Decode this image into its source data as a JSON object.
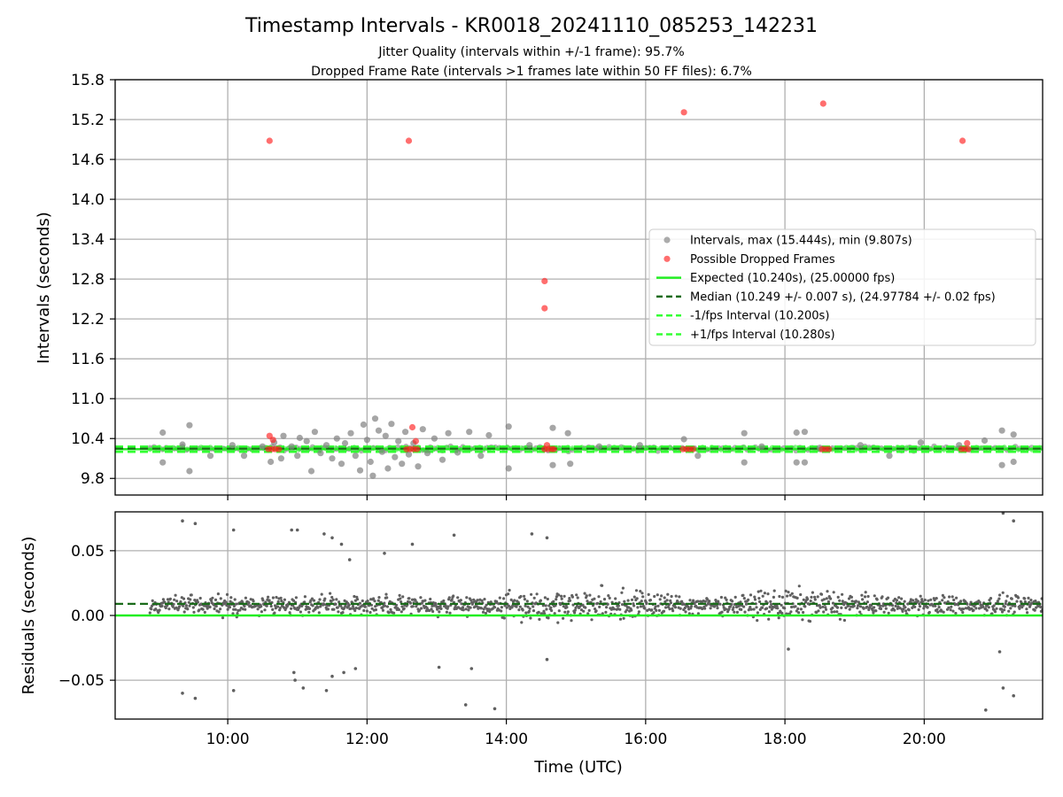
{
  "title": "Timestamp Intervals - KR0018_20241110_085253_142231",
  "subtitle_1": "Jitter Quality (intervals within +/-1 frame): 95.7%",
  "subtitle_2": "Dropped Frame Rate (intervals >1 frames late within 50 FF files): 6.7%",
  "colors": {
    "intervals": "#808080",
    "dropped": "#ff2020",
    "expected": "#22ee22",
    "median": "#1a6b1a",
    "fps_band": "#33ff33",
    "grid": "#b0b0b0",
    "residual_points": "#606060"
  },
  "chart_data": [
    {
      "type": "scatter",
      "panel": "intervals",
      "xlabel": "",
      "ylabel": "Intervals (seconds)",
      "xlim": [
        "08:23",
        "21:42"
      ],
      "ylim": [
        9.55,
        15.8
      ],
      "yticks": [
        9.8,
        10.4,
        11.0,
        11.6,
        12.2,
        12.8,
        13.4,
        14.0,
        14.6,
        15.2,
        15.8
      ],
      "ytick_labels": [
        "9.8",
        "10.4",
        "11.0",
        "11.6",
        "12.2",
        "12.8",
        "13.4",
        "14.0",
        "14.6",
        "15.2",
        "15.8"
      ],
      "xticks": [
        "10:00",
        "12:00",
        "14:00",
        "16:00",
        "18:00",
        "20:00"
      ],
      "grid": true,
      "legend_position": "center-right",
      "legend": [
        {
          "label": "Intervals, max (15.444s), min (9.807s)",
          "kind": "marker",
          "color_key": "intervals"
        },
        {
          "label": "Possible Dropped Frames",
          "kind": "marker",
          "color_key": "dropped"
        },
        {
          "label": "Expected (10.240s), (25.00000 fps)",
          "kind": "line",
          "color_key": "expected"
        },
        {
          "label": "Median (10.249 +/- 0.007 s), (24.97784 +/- 0.02 fps)",
          "kind": "dashed",
          "color_key": "median"
        },
        {
          "label": "-1/fps Interval (10.200s)",
          "kind": "dashed",
          "color_key": "fps_band"
        },
        {
          "label": "+1/fps Interval (10.280s)",
          "kind": "dashed",
          "color_key": "fps_band"
        }
      ],
      "lines": {
        "expected": 10.24,
        "median": 10.249,
        "minus_fps": 10.2,
        "plus_fps": 10.28
      },
      "dense_band": {
        "x_start": "08:53",
        "x_end": "21:42",
        "y": 10.249
      },
      "series": [
        {
          "name": "Intervals, max (15.444s), min (9.807s)",
          "points": [
            {
              "x": "09:04",
              "y": 10.49
            },
            {
              "x": "09:04",
              "y": 10.04
            },
            {
              "x": "09:21",
              "y": 10.31
            },
            {
              "x": "09:27",
              "y": 10.6
            },
            {
              "x": "09:27",
              "y": 9.91
            },
            {
              "x": "09:45",
              "y": 10.14
            },
            {
              "x": "10:04",
              "y": 10.3
            },
            {
              "x": "10:14",
              "y": 10.14
            },
            {
              "x": "10:30",
              "y": 10.28
            },
            {
              "x": "10:37",
              "y": 10.05
            },
            {
              "x": "10:40",
              "y": 10.34
            },
            {
              "x": "10:46",
              "y": 10.1
            },
            {
              "x": "10:48",
              "y": 10.44
            },
            {
              "x": "10:55",
              "y": 10.28
            },
            {
              "x": "11:00",
              "y": 10.14
            },
            {
              "x": "11:02",
              "y": 10.41
            },
            {
              "x": "11:08",
              "y": 10.36
            },
            {
              "x": "11:12",
              "y": 9.91
            },
            {
              "x": "11:15",
              "y": 10.5
            },
            {
              "x": "11:20",
              "y": 10.18
            },
            {
              "x": "11:25",
              "y": 10.3
            },
            {
              "x": "11:30",
              "y": 10.1
            },
            {
              "x": "11:34",
              "y": 10.4
            },
            {
              "x": "11:38",
              "y": 10.02
            },
            {
              "x": "11:41",
              "y": 10.33
            },
            {
              "x": "11:46",
              "y": 10.48
            },
            {
              "x": "11:50",
              "y": 10.14
            },
            {
              "x": "11:54",
              "y": 9.92
            },
            {
              "x": "11:57",
              "y": 10.61
            },
            {
              "x": "12:00",
              "y": 10.38
            },
            {
              "x": "12:03",
              "y": 10.05
            },
            {
              "x": "12:05",
              "y": 9.84
            },
            {
              "x": "12:07",
              "y": 10.7
            },
            {
              "x": "12:10",
              "y": 10.52
            },
            {
              "x": "12:13",
              "y": 10.2
            },
            {
              "x": "12:16",
              "y": 10.44
            },
            {
              "x": "12:18",
              "y": 9.95
            },
            {
              "x": "12:21",
              "y": 10.62
            },
            {
              "x": "12:24",
              "y": 10.12
            },
            {
              "x": "12:27",
              "y": 10.36
            },
            {
              "x": "12:30",
              "y": 10.02
            },
            {
              "x": "12:33",
              "y": 10.5
            },
            {
              "x": "12:36",
              "y": 10.16
            },
            {
              "x": "12:40",
              "y": 10.33
            },
            {
              "x": "12:44",
              "y": 9.98
            },
            {
              "x": "12:48",
              "y": 10.54
            },
            {
              "x": "12:52",
              "y": 10.18
            },
            {
              "x": "12:58",
              "y": 10.4
            },
            {
              "x": "13:05",
              "y": 10.08
            },
            {
              "x": "13:10",
              "y": 10.48
            },
            {
              "x": "13:18",
              "y": 10.19
            },
            {
              "x": "13:28",
              "y": 10.5
            },
            {
              "x": "13:38",
              "y": 10.14
            },
            {
              "x": "13:45",
              "y": 10.45
            },
            {
              "x": "14:02",
              "y": 10.58
            },
            {
              "x": "14:02",
              "y": 9.95
            },
            {
              "x": "14:20",
              "y": 10.3
            },
            {
              "x": "14:40",
              "y": 10.56
            },
            {
              "x": "14:40",
              "y": 10.0
            },
            {
              "x": "14:53",
              "y": 10.48
            },
            {
              "x": "14:55",
              "y": 10.02
            },
            {
              "x": "15:20",
              "y": 10.28
            },
            {
              "x": "15:55",
              "y": 10.3
            },
            {
              "x": "16:33",
              "y": 10.39
            },
            {
              "x": "16:45",
              "y": 10.14
            },
            {
              "x": "17:25",
              "y": 10.48
            },
            {
              "x": "17:25",
              "y": 10.04
            },
            {
              "x": "17:40",
              "y": 10.28
            },
            {
              "x": "18:10",
              "y": 10.49
            },
            {
              "x": "18:10",
              "y": 10.04
            },
            {
              "x": "18:17",
              "y": 10.04
            },
            {
              "x": "18:17",
              "y": 10.5
            },
            {
              "x": "18:30",
              "y": 10.26
            },
            {
              "x": "19:05",
              "y": 10.3
            },
            {
              "x": "19:30",
              "y": 10.14
            },
            {
              "x": "19:57",
              "y": 10.34
            },
            {
              "x": "20:30",
              "y": 10.3
            },
            {
              "x": "20:52",
              "y": 10.37
            },
            {
              "x": "21:07",
              "y": 10.52
            },
            {
              "x": "21:07",
              "y": 10.0
            },
            {
              "x": "21:17",
              "y": 10.46
            },
            {
              "x": "21:17",
              "y": 10.05
            }
          ]
        },
        {
          "name": "Possible Dropped Frames",
          "points": [
            {
              "x": "10:36",
              "y": 14.88
            },
            {
              "x": "10:36",
              "y": 10.44
            },
            {
              "x": "10:39",
              "y": 10.38
            },
            {
              "x": "10:35",
              "y": 10.24
            },
            {
              "x": "10:38",
              "y": 10.24
            },
            {
              "x": "10:41",
              "y": 10.24
            },
            {
              "x": "10:44",
              "y": 10.24
            },
            {
              "x": "12:36",
              "y": 14.88
            },
            {
              "x": "12:39",
              "y": 10.57
            },
            {
              "x": "12:42",
              "y": 10.36
            },
            {
              "x": "12:34",
              "y": 10.24
            },
            {
              "x": "12:37",
              "y": 10.24
            },
            {
              "x": "12:40",
              "y": 10.24
            },
            {
              "x": "12:43",
              "y": 10.24
            },
            {
              "x": "14:33",
              "y": 12.77
            },
            {
              "x": "14:33",
              "y": 12.36
            },
            {
              "x": "14:35",
              "y": 10.3
            },
            {
              "x": "14:33",
              "y": 10.24
            },
            {
              "x": "14:36",
              "y": 10.24
            },
            {
              "x": "14:39",
              "y": 10.24
            },
            {
              "x": "14:41",
              "y": 10.24
            },
            {
              "x": "16:33",
              "y": 15.31
            },
            {
              "x": "16:32",
              "y": 10.24
            },
            {
              "x": "16:35",
              "y": 10.24
            },
            {
              "x": "16:38",
              "y": 10.24
            },
            {
              "x": "16:41",
              "y": 10.24
            },
            {
              "x": "18:33",
              "y": 15.44
            },
            {
              "x": "18:32",
              "y": 10.24
            },
            {
              "x": "18:35",
              "y": 10.24
            },
            {
              "x": "18:38",
              "y": 10.24
            },
            {
              "x": "20:33",
              "y": 14.88
            },
            {
              "x": "20:37",
              "y": 10.33
            },
            {
              "x": "20:32",
              "y": 10.24
            },
            {
              "x": "20:35",
              "y": 10.24
            },
            {
              "x": "20:38",
              "y": 10.24
            }
          ]
        }
      ]
    },
    {
      "type": "scatter",
      "panel": "residuals",
      "xlabel": "Time (UTC)",
      "ylabel": "Residuals (seconds)",
      "xlim": [
        "08:23",
        "21:42"
      ],
      "ylim": [
        -0.08,
        0.08
      ],
      "yticks": [
        -0.05,
        0.0,
        0.05
      ],
      "ytick_labels": [
        "−0.05",
        "0.00",
        "0.05"
      ],
      "xticks": [
        "10:00",
        "12:00",
        "14:00",
        "16:00",
        "18:00",
        "20:00"
      ],
      "xtick_labels": [
        "10:00",
        "12:00",
        "14:00",
        "16:00",
        "18:00",
        "20:00"
      ],
      "grid": true,
      "lines": {
        "zero": 0.0,
        "median": 0.009
      },
      "dense_band": {
        "x_start": "08:53",
        "x_end": "21:42",
        "center": 0.008,
        "spread": 0.012
      },
      "series": [
        {
          "name": "Residuals",
          "points": [
            {
              "x": "09:21",
              "y": 0.073
            },
            {
              "x": "09:32",
              "y": 0.071
            },
            {
              "x": "10:05",
              "y": 0.066
            },
            {
              "x": "10:55",
              "y": 0.066
            },
            {
              "x": "11:00",
              "y": 0.066
            },
            {
              "x": "11:23",
              "y": 0.063
            },
            {
              "x": "11:30",
              "y": 0.06
            },
            {
              "x": "11:38",
              "y": 0.055
            },
            {
              "x": "11:45",
              "y": 0.043
            },
            {
              "x": "12:15",
              "y": 0.048
            },
            {
              "x": "12:39",
              "y": 0.055
            },
            {
              "x": "13:15",
              "y": 0.062
            },
            {
              "x": "14:22",
              "y": 0.063
            },
            {
              "x": "14:35",
              "y": 0.06
            },
            {
              "x": "21:08",
              "y": 0.079
            },
            {
              "x": "21:17",
              "y": 0.073
            },
            {
              "x": "09:21",
              "y": -0.06
            },
            {
              "x": "09:32",
              "y": -0.064
            },
            {
              "x": "10:05",
              "y": -0.058
            },
            {
              "x": "10:57",
              "y": -0.044
            },
            {
              "x": "10:58",
              "y": -0.05
            },
            {
              "x": "11:05",
              "y": -0.056
            },
            {
              "x": "11:25",
              "y": -0.058
            },
            {
              "x": "11:30",
              "y": -0.047
            },
            {
              "x": "11:40",
              "y": -0.044
            },
            {
              "x": "11:50",
              "y": -0.041
            },
            {
              "x": "13:02",
              "y": -0.04
            },
            {
              "x": "13:25",
              "y": -0.069
            },
            {
              "x": "13:30",
              "y": -0.041
            },
            {
              "x": "13:50",
              "y": -0.072
            },
            {
              "x": "14:35",
              "y": -0.034
            },
            {
              "x": "18:03",
              "y": -0.026
            },
            {
              "x": "20:53",
              "y": -0.073
            },
            {
              "x": "21:05",
              "y": -0.028
            },
            {
              "x": "21:08",
              "y": -0.056
            },
            {
              "x": "21:17",
              "y": -0.062
            }
          ]
        }
      ]
    }
  ]
}
